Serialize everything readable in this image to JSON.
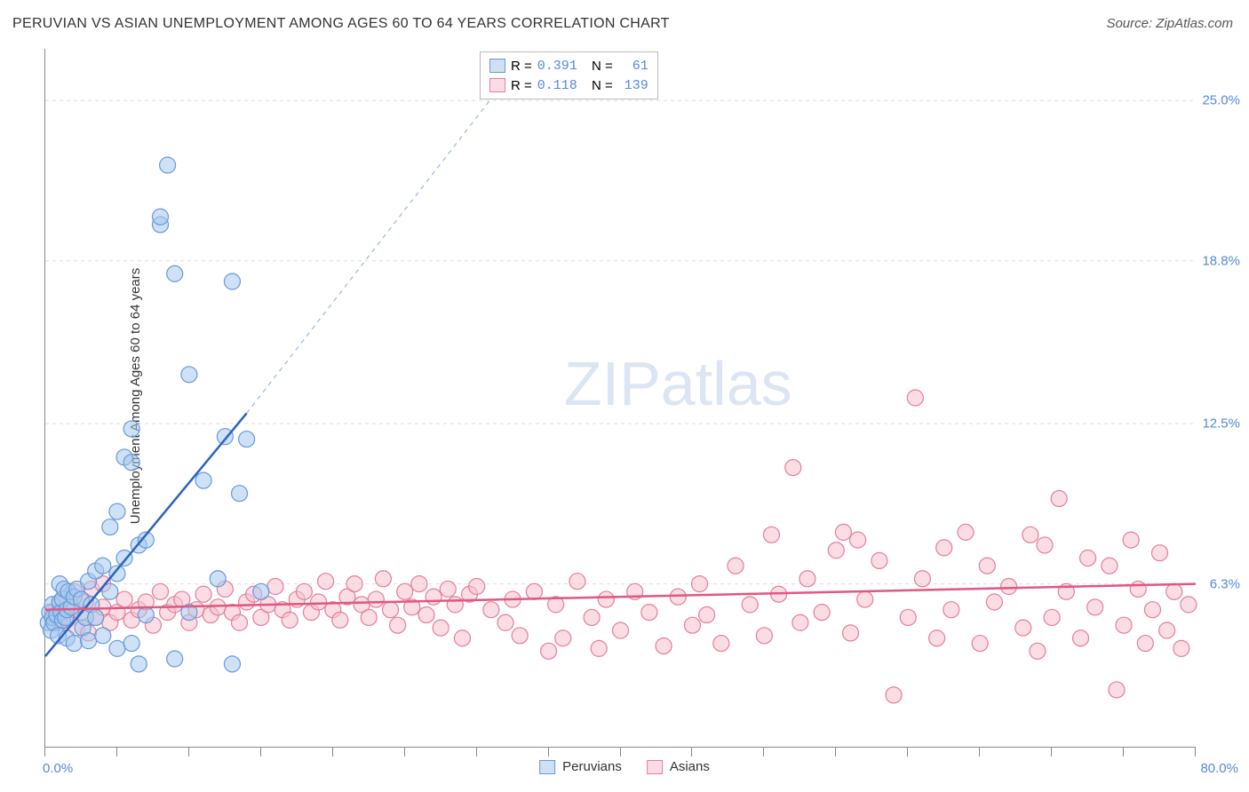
{
  "title": "PERUVIAN VS ASIAN UNEMPLOYMENT AMONG AGES 60 TO 64 YEARS CORRELATION CHART",
  "source": "Source: ZipAtlas.com",
  "y_axis_label": "Unemployment Among Ages 60 to 64 years",
  "watermark_bold": "ZIP",
  "watermark_light": "atlas",
  "chart": {
    "type": "scatter",
    "background_color": "#ffffff",
    "grid_color": "#dddddd",
    "grid_dash": "4,4",
    "axis_color": "#888888",
    "label_color": "#5588dd",
    "font_family": "Arial, sans-serif",
    "title_fontsize": 16,
    "label_fontsize": 15,
    "xlim": [
      0,
      80
    ],
    "ylim": [
      0,
      27
    ],
    "y_ticks": [
      {
        "value": 6.3,
        "label": "6.3%"
      },
      {
        "value": 12.5,
        "label": "12.5%"
      },
      {
        "value": 18.8,
        "label": "18.8%"
      },
      {
        "value": 25.0,
        "label": "25.0%"
      }
    ],
    "x_min_label": "0.0%",
    "x_max_label": "80.0%",
    "x_tick_positions": [
      0,
      5,
      10,
      15,
      20,
      25,
      30,
      35,
      40,
      45,
      50,
      55,
      60,
      65,
      70,
      75,
      80
    ],
    "marker_radius": 9,
    "marker_opacity": 0.55,
    "line_width": 2.5,
    "series": [
      {
        "name": "Peruvians",
        "color_fill": "#a6c8ec",
        "color_stroke": "#6699dd",
        "swatch_fill": "#cfe0f5",
        "swatch_border": "#6699dd",
        "R": "0.391",
        "N": "61",
        "regression": {
          "x1": 0,
          "y1": 3.5,
          "x2": 14,
          "y2": 12.9,
          "extrapolate_x2": 33,
          "extrapolate_y2": 26.5
        },
        "points": [
          [
            0.2,
            4.8
          ],
          [
            0.3,
            5.2
          ],
          [
            0.4,
            4.5
          ],
          [
            0.5,
            5.5
          ],
          [
            0.5,
            5.0
          ],
          [
            0.6,
            4.8
          ],
          [
            0.8,
            5.1
          ],
          [
            0.9,
            4.3
          ],
          [
            1.0,
            5.6
          ],
          [
            1.0,
            6.3
          ],
          [
            1.1,
            5.2
          ],
          [
            1.2,
            5.7
          ],
          [
            1.2,
            4.9
          ],
          [
            1.3,
            6.1
          ],
          [
            1.4,
            5.0
          ],
          [
            1.5,
            4.2
          ],
          [
            1.5,
            5.3
          ],
          [
            1.6,
            6.0
          ],
          [
            1.8,
            5.4
          ],
          [
            2.0,
            5.8
          ],
          [
            2.0,
            4.0
          ],
          [
            2.2,
            6.1
          ],
          [
            2.5,
            5.7
          ],
          [
            2.6,
            4.6
          ],
          [
            2.8,
            5.0
          ],
          [
            3.0,
            4.1
          ],
          [
            3.0,
            6.4
          ],
          [
            3.2,
            5.5
          ],
          [
            3.5,
            6.8
          ],
          [
            3.5,
            5.0
          ],
          [
            4.0,
            4.3
          ],
          [
            4.0,
            7.0
          ],
          [
            4.5,
            8.5
          ],
          [
            4.5,
            6.0
          ],
          [
            5.0,
            3.8
          ],
          [
            5.0,
            9.1
          ],
          [
            5.0,
            6.7
          ],
          [
            5.5,
            7.3
          ],
          [
            5.5,
            11.2
          ],
          [
            6.0,
            12.3
          ],
          [
            6.0,
            4.0
          ],
          [
            6.0,
            11.0
          ],
          [
            6.5,
            7.8
          ],
          [
            6.5,
            3.2
          ],
          [
            7.0,
            5.1
          ],
          [
            7.0,
            8.0
          ],
          [
            8.0,
            20.2
          ],
          [
            8.0,
            20.5
          ],
          [
            8.5,
            22.5
          ],
          [
            9.0,
            18.3
          ],
          [
            9.0,
            3.4
          ],
          [
            10.0,
            14.4
          ],
          [
            10.0,
            5.2
          ],
          [
            11.0,
            10.3
          ],
          [
            12.0,
            6.5
          ],
          [
            12.5,
            12.0
          ],
          [
            13.0,
            18.0
          ],
          [
            13.0,
            3.2
          ],
          [
            13.5,
            9.8
          ],
          [
            14.0,
            11.9
          ],
          [
            15.0,
            6.0
          ]
        ]
      },
      {
        "name": "Asians",
        "color_fill": "#f5c2ce",
        "color_stroke": "#e77c9a",
        "swatch_fill": "#fadde4",
        "swatch_border": "#e77c9a",
        "R": "0.118",
        "N": "139",
        "regression": {
          "x1": 0,
          "y1": 5.3,
          "x2": 80,
          "y2": 6.3
        },
        "points": [
          [
            0.5,
            5.2
          ],
          [
            1.0,
            4.8
          ],
          [
            1.0,
            5.5
          ],
          [
            1.2,
            5.7
          ],
          [
            1.5,
            4.9
          ],
          [
            1.8,
            5.3
          ],
          [
            2.0,
            6.0
          ],
          [
            2.2,
            4.6
          ],
          [
            2.5,
            5.2
          ],
          [
            2.8,
            5.6
          ],
          [
            3.0,
            4.4
          ],
          [
            3.2,
            6.1
          ],
          [
            3.5,
            5.0
          ],
          [
            4.0,
            5.4
          ],
          [
            4.0,
            6.3
          ],
          [
            4.5,
            4.8
          ],
          [
            5.0,
            5.2
          ],
          [
            5.5,
            5.7
          ],
          [
            6.0,
            4.9
          ],
          [
            6.5,
            5.3
          ],
          [
            7.0,
            5.6
          ],
          [
            7.5,
            4.7
          ],
          [
            8.0,
            6.0
          ],
          [
            8.5,
            5.2
          ],
          [
            9.0,
            5.5
          ],
          [
            9.5,
            5.7
          ],
          [
            10.0,
            4.8
          ],
          [
            10.5,
            5.3
          ],
          [
            11.0,
            5.9
          ],
          [
            11.5,
            5.1
          ],
          [
            12.0,
            5.4
          ],
          [
            12.5,
            6.1
          ],
          [
            13.0,
            5.2
          ],
          [
            13.5,
            4.8
          ],
          [
            14.0,
            5.6
          ],
          [
            14.5,
            5.9
          ],
          [
            15.0,
            5.0
          ],
          [
            15.5,
            5.5
          ],
          [
            16.0,
            6.2
          ],
          [
            16.5,
            5.3
          ],
          [
            17.0,
            4.9
          ],
          [
            17.5,
            5.7
          ],
          [
            18.0,
            6.0
          ],
          [
            18.5,
            5.2
          ],
          [
            19.0,
            5.6
          ],
          [
            19.5,
            6.4
          ],
          [
            20.0,
            5.3
          ],
          [
            20.5,
            4.9
          ],
          [
            21.0,
            5.8
          ],
          [
            21.5,
            6.3
          ],
          [
            22.0,
            5.5
          ],
          [
            22.5,
            5.0
          ],
          [
            23.0,
            5.7
          ],
          [
            23.5,
            6.5
          ],
          [
            24.0,
            5.3
          ],
          [
            24.5,
            4.7
          ],
          [
            25.0,
            6.0
          ],
          [
            25.5,
            5.4
          ],
          [
            26.0,
            6.3
          ],
          [
            26.5,
            5.1
          ],
          [
            27.0,
            5.8
          ],
          [
            27.5,
            4.6
          ],
          [
            28.0,
            6.1
          ],
          [
            28.5,
            5.5
          ],
          [
            29.0,
            4.2
          ],
          [
            29.5,
            5.9
          ],
          [
            30.0,
            6.2
          ],
          [
            31.0,
            5.3
          ],
          [
            32.0,
            4.8
          ],
          [
            32.5,
            5.7
          ],
          [
            33.0,
            4.3
          ],
          [
            34.0,
            6.0
          ],
          [
            35.0,
            3.7
          ],
          [
            35.5,
            5.5
          ],
          [
            36.0,
            4.2
          ],
          [
            37.0,
            6.4
          ],
          [
            38.0,
            5.0
          ],
          [
            38.5,
            3.8
          ],
          [
            39.0,
            5.7
          ],
          [
            40.0,
            4.5
          ],
          [
            41.0,
            6.0
          ],
          [
            42.0,
            5.2
          ],
          [
            43.0,
            3.9
          ],
          [
            44.0,
            5.8
          ],
          [
            45.0,
            4.7
          ],
          [
            45.5,
            6.3
          ],
          [
            46.0,
            5.1
          ],
          [
            47.0,
            4.0
          ],
          [
            48.0,
            7.0
          ],
          [
            49.0,
            5.5
          ],
          [
            50.0,
            4.3
          ],
          [
            50.5,
            8.2
          ],
          [
            51.0,
            5.9
          ],
          [
            52.0,
            10.8
          ],
          [
            52.5,
            4.8
          ],
          [
            53.0,
            6.5
          ],
          [
            54.0,
            5.2
          ],
          [
            55.0,
            7.6
          ],
          [
            55.5,
            8.3
          ],
          [
            56.0,
            4.4
          ],
          [
            56.5,
            8.0
          ],
          [
            57.0,
            5.7
          ],
          [
            58.0,
            7.2
          ],
          [
            59.0,
            2.0
          ],
          [
            60.0,
            5.0
          ],
          [
            60.5,
            13.5
          ],
          [
            61.0,
            6.5
          ],
          [
            62.0,
            4.2
          ],
          [
            62.5,
            7.7
          ],
          [
            63.0,
            5.3
          ],
          [
            64.0,
            8.3
          ],
          [
            65.0,
            4.0
          ],
          [
            65.5,
            7.0
          ],
          [
            66.0,
            5.6
          ],
          [
            67.0,
            6.2
          ],
          [
            68.0,
            4.6
          ],
          [
            68.5,
            8.2
          ],
          [
            69.0,
            3.7
          ],
          [
            69.5,
            7.8
          ],
          [
            70.0,
            5.0
          ],
          [
            70.5,
            9.6
          ],
          [
            71.0,
            6.0
          ],
          [
            72.0,
            4.2
          ],
          [
            72.5,
            7.3
          ],
          [
            73.0,
            5.4
          ],
          [
            74.0,
            7.0
          ],
          [
            74.5,
            2.2
          ],
          [
            75.0,
            4.7
          ],
          [
            75.5,
            8.0
          ],
          [
            76.0,
            6.1
          ],
          [
            76.5,
            4.0
          ],
          [
            77.0,
            5.3
          ],
          [
            77.5,
            7.5
          ],
          [
            78.0,
            4.5
          ],
          [
            78.5,
            6.0
          ],
          [
            79.0,
            3.8
          ],
          [
            79.5,
            5.5
          ]
        ]
      }
    ]
  },
  "legend": {
    "series1_label": "Peruvians",
    "series2_label": "Asians"
  },
  "stats_labels": {
    "R": "R =",
    "N": "N ="
  }
}
